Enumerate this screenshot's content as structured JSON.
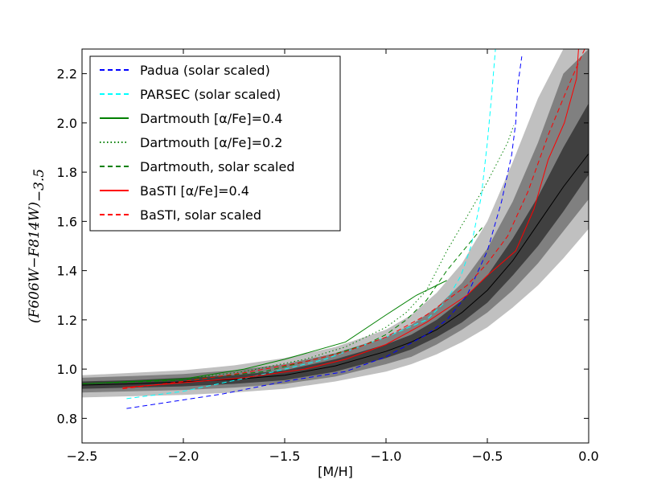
{
  "chart_data": {
    "type": "line",
    "title": "",
    "xlabel": "[M/H]",
    "ylabel": "(F606W−F814W)",
    "ylabel_subscript": "−3.5",
    "xlim": [
      -2.5,
      0.0
    ],
    "ylim": [
      0.7,
      2.3
    ],
    "xticks": [
      -2.5,
      -2.0,
      -1.5,
      -1.0,
      -0.5,
      0.0
    ],
    "xtick_labels": [
      "−2.5",
      "−2.0",
      "−1.5",
      "−1.0",
      "−0.5",
      "0.0"
    ],
    "yticks": [
      0.8,
      1.0,
      1.2,
      1.4,
      1.6,
      1.8,
      2.0,
      2.2
    ],
    "ytick_labels": [
      "0.8",
      "1.0",
      "1.2",
      "1.4",
      "1.6",
      "1.8",
      "2.0",
      "2.2"
    ],
    "grid": false,
    "legend_position": "top-left",
    "density_bands": {
      "x": [
        -2.5,
        -2.25,
        -2.0,
        -1.75,
        -1.5,
        -1.25,
        -1.0,
        -0.875,
        -0.75,
        -0.625,
        -0.5,
        -0.375,
        -0.25,
        -0.125,
        0.0
      ],
      "outer_low": [
        0.885,
        0.89,
        0.895,
        0.905,
        0.92,
        0.95,
        0.99,
        1.02,
        1.06,
        1.11,
        1.17,
        1.25,
        1.34,
        1.45,
        1.57
      ],
      "outer_high": [
        0.975,
        0.985,
        0.995,
        1.015,
        1.045,
        1.09,
        1.16,
        1.22,
        1.31,
        1.43,
        1.6,
        1.84,
        2.1,
        2.3,
        2.3
      ],
      "mid_low": [
        0.905,
        0.91,
        0.915,
        0.925,
        0.94,
        0.97,
        1.02,
        1.05,
        1.1,
        1.16,
        1.23,
        1.32,
        1.43,
        1.56,
        1.69
      ],
      "mid_high": [
        0.965,
        0.972,
        0.98,
        0.995,
        1.02,
        1.065,
        1.13,
        1.18,
        1.25,
        1.35,
        1.49,
        1.68,
        1.92,
        2.2,
        2.3
      ],
      "inner_low": [
        0.92,
        0.925,
        0.93,
        0.94,
        0.955,
        0.99,
        1.045,
        1.08,
        1.13,
        1.19,
        1.27,
        1.38,
        1.5,
        1.64,
        1.79
      ],
      "inner_high": [
        0.95,
        0.955,
        0.965,
        0.975,
        0.995,
        1.04,
        1.1,
        1.14,
        1.2,
        1.28,
        1.38,
        1.53,
        1.7,
        1.9,
        2.08
      ],
      "median": [
        0.935,
        0.94,
        0.948,
        0.958,
        0.975,
        1.013,
        1.072,
        1.11,
        1.16,
        1.23,
        1.32,
        1.44,
        1.59,
        1.74,
        1.875
      ]
    },
    "series": [
      {
        "name": "Padua (solar scaled)",
        "color": "#0000ff",
        "dash": "dashed",
        "x": [
          -2.28,
          -1.8,
          -1.5,
          -1.2,
          -1.0,
          -0.8,
          -0.7,
          -0.6,
          -0.5,
          -0.43,
          -0.38,
          -0.36,
          -0.35,
          -0.33
        ],
        "y": [
          0.84,
          0.9,
          0.95,
          0.99,
          1.05,
          1.14,
          1.2,
          1.3,
          1.48,
          1.68,
          1.87,
          2.0,
          2.15,
          2.27
        ]
      },
      {
        "name": "PARSEC (solar scaled)",
        "color": "#00ffff",
        "dash": "dashed",
        "x": [
          -2.28,
          -2.0,
          -1.6,
          -1.3,
          -1.0,
          -0.8,
          -0.7,
          -0.63,
          -0.58,
          -0.53,
          -0.5,
          -0.48,
          -0.47,
          -0.46
        ],
        "y": [
          0.88,
          0.91,
          0.98,
          1.04,
          1.13,
          1.2,
          1.28,
          1.38,
          1.5,
          1.7,
          1.92,
          2.1,
          2.2,
          2.3
        ]
      },
      {
        "name": "Dartmouth [α/Fe]=0.4",
        "color": "#008000",
        "dash": "solid",
        "x": [
          -2.5,
          -2.0,
          -1.7,
          -1.5,
          -1.2,
          -1.0,
          -0.85,
          -0.7
        ],
        "y": [
          0.94,
          0.96,
          1.0,
          1.04,
          1.11,
          1.22,
          1.3,
          1.36
        ]
      },
      {
        "name": "Dartmouth [α/Fe]=0.2",
        "color": "#008000",
        "dash": "dotted",
        "x": [
          -2.5,
          -2.0,
          -1.7,
          -1.4,
          -1.2,
          -1.0,
          -0.9,
          -0.8,
          -0.7,
          -0.6,
          -0.5,
          -0.4,
          -0.37
        ],
        "y": [
          0.94,
          0.96,
          0.99,
          1.04,
          1.09,
          1.17,
          1.23,
          1.32,
          1.48,
          1.62,
          1.76,
          1.92,
          1.99
        ]
      },
      {
        "name": "Dartmouth, solar scaled",
        "color": "#008000",
        "dash": "dashed",
        "x": [
          -2.5,
          -2.0,
          -1.6,
          -1.3,
          -1.1,
          -1.0,
          -0.9,
          -0.8,
          -0.7,
          -0.6,
          -0.52
        ],
        "y": [
          0.94,
          0.955,
          0.99,
          1.05,
          1.1,
          1.14,
          1.2,
          1.28,
          1.4,
          1.5,
          1.58
        ]
      },
      {
        "name": "BaSTI [α/Fe]=0.4",
        "color": "#ff0000",
        "dash": "solid",
        "x": [
          -2.3,
          -2.0,
          -1.7,
          -1.4,
          -1.2,
          -1.0,
          -0.8,
          -0.6,
          -0.5,
          -0.36,
          -0.27,
          -0.2,
          -0.12,
          -0.06,
          -0.05
        ],
        "y": [
          0.925,
          0.945,
          0.965,
          1.0,
          1.04,
          1.1,
          1.19,
          1.3,
          1.38,
          1.48,
          1.65,
          1.85,
          2.0,
          2.18,
          2.3
        ]
      },
      {
        "name": "BaSTI, solar scaled",
        "color": "#ff0000",
        "dash": "dashed",
        "x": [
          -2.3,
          -2.0,
          -1.7,
          -1.4,
          -1.2,
          -1.0,
          -0.8,
          -0.6,
          -0.5,
          -0.4,
          -0.3,
          -0.2,
          -0.1,
          -0.02
        ],
        "y": [
          0.92,
          0.95,
          0.985,
          1.03,
          1.07,
          1.13,
          1.22,
          1.34,
          1.43,
          1.54,
          1.72,
          1.95,
          2.15,
          2.3
        ]
      }
    ]
  }
}
